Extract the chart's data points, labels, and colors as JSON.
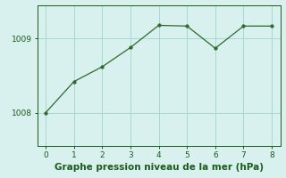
{
  "x": [
    0,
    1,
    2,
    3,
    4,
    5,
    6,
    7,
    8
  ],
  "y": [
    1008.0,
    1008.42,
    1008.62,
    1008.88,
    1009.18,
    1009.17,
    1008.87,
    1009.17,
    1009.17
  ],
  "line_color": "#2d6a2d",
  "marker": "o",
  "marker_size": 2.5,
  "bg_color": "#d8f0ee",
  "grid_color": "#a8d8d0",
  "xlabel": "Graphe pression niveau de la mer (hPa)",
  "xlabel_color": "#1a5c1a",
  "xlabel_fontsize": 7.5,
  "tick_color": "#1a5c1a",
  "tick_fontsize": 6.5,
  "yticks": [
    1008,
    1009
  ],
  "ylim": [
    1007.55,
    1009.45
  ],
  "xlim": [
    -0.3,
    8.3
  ],
  "xticks": [
    0,
    1,
    2,
    3,
    4,
    5,
    6,
    7,
    8
  ]
}
